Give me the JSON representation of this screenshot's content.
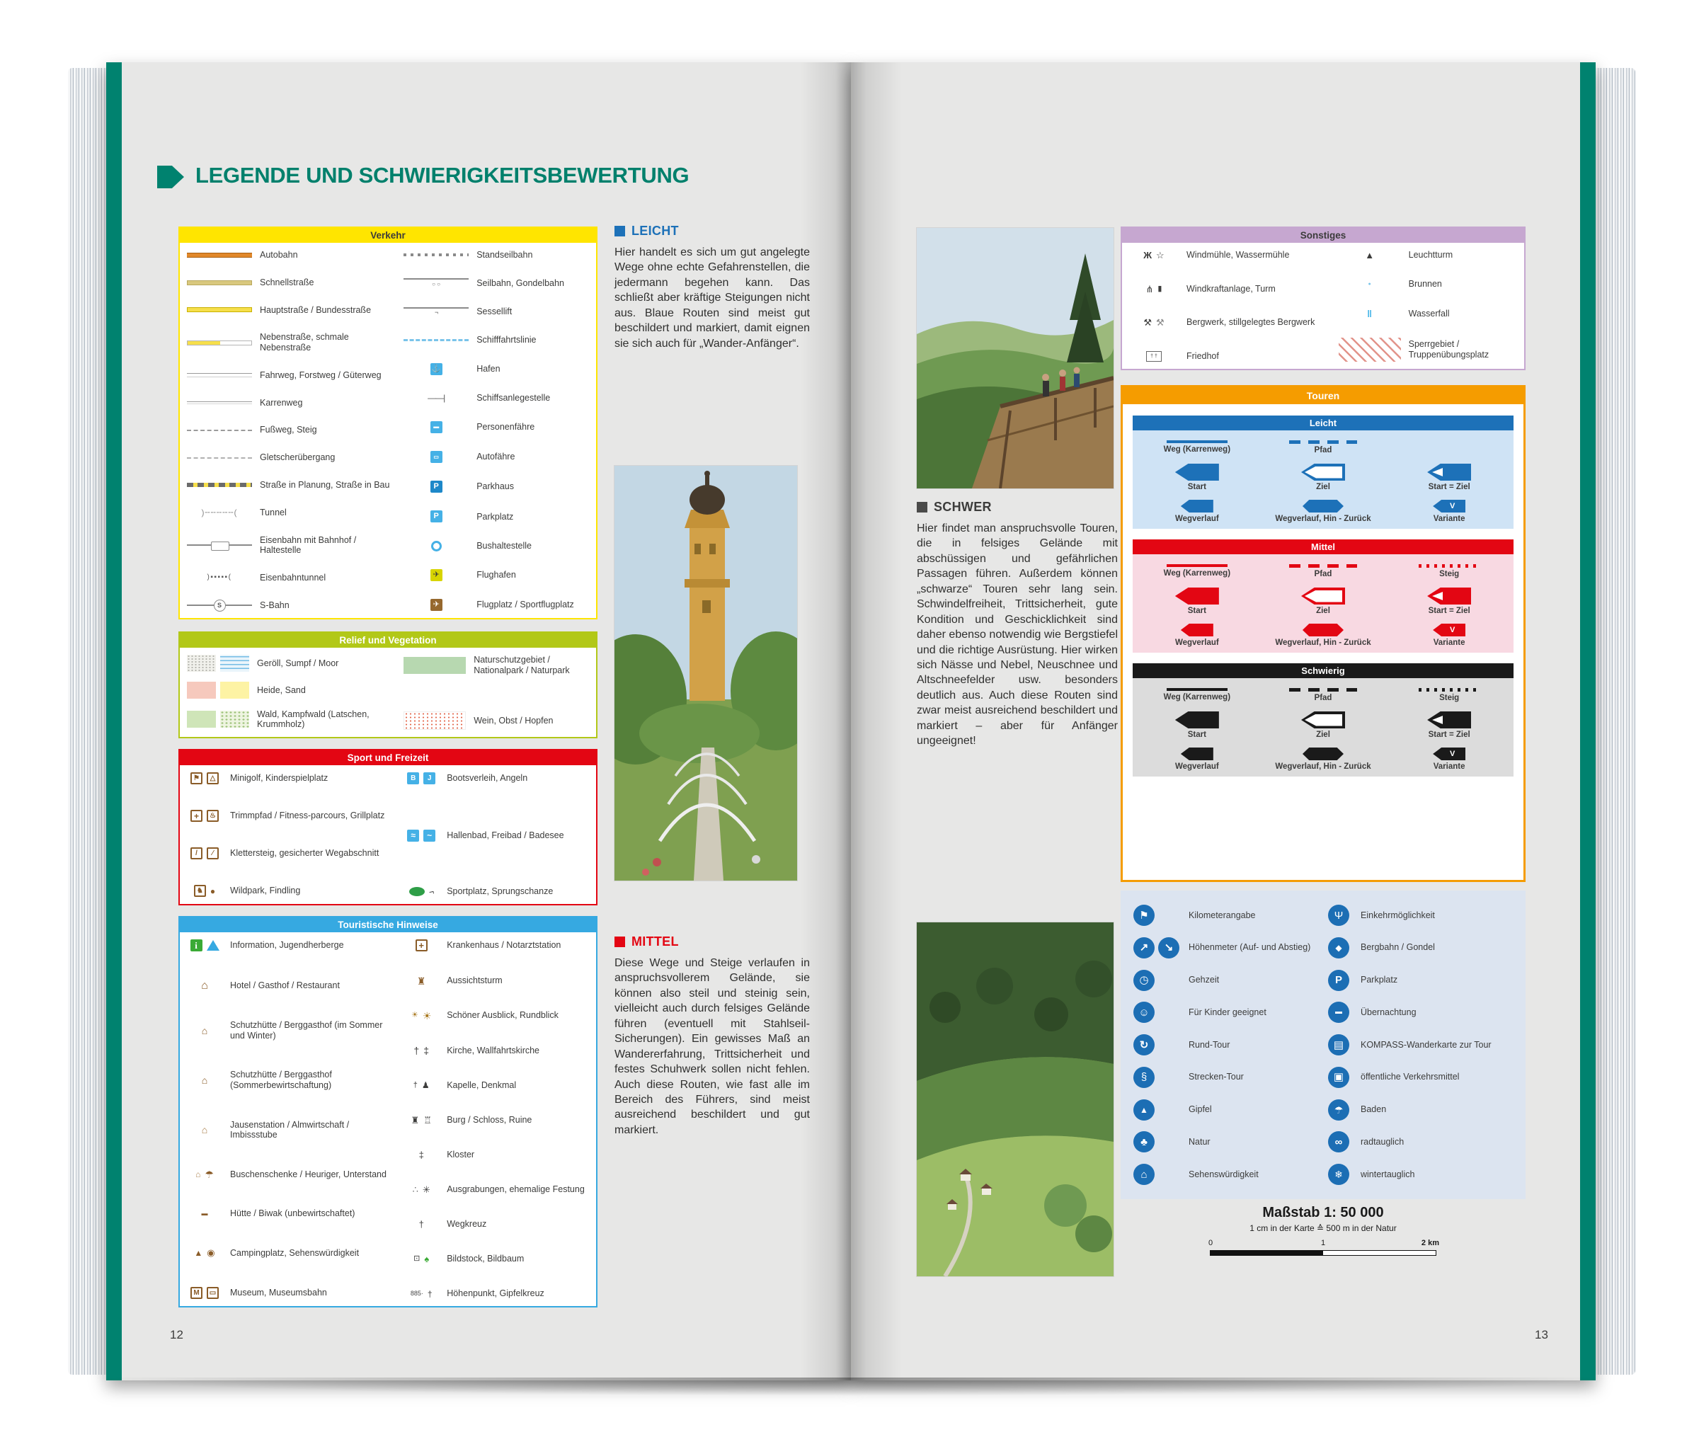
{
  "page": {
    "title": "LEGENDE UND SCHWIERIGKEITSBEWERTUNG",
    "left_page_number": "12",
    "right_page_number": "13"
  },
  "colors": {
    "brand_teal": "#00826f",
    "verkehr_yellow": "#ffe500",
    "relief_green": "#b2c818",
    "sport_red": "#e30613",
    "touristik_blue": "#36a9e1",
    "sonstiges_purple": "#c6a7d0",
    "touren_orange": "#f59c00",
    "leicht_blue": "#1d71b8",
    "mittel_red": "#e30613",
    "schwierig_black": "#1a1a1a",
    "tour_icon_blue": "#1c6eb4"
  },
  "verkehr": {
    "title": "Verkehr",
    "left": [
      {
        "icons": [
          "autobahn"
        ],
        "label": "Autobahn"
      },
      {
        "icons": [
          "schnellstrasse"
        ],
        "label": "Schnellstraße"
      },
      {
        "icons": [
          "hauptstrasse"
        ],
        "label": "Hauptstraße / Bundesstraße"
      },
      {
        "icons": [
          "nebenstrasse"
        ],
        "label": "Nebenstraße, schmale Nebenstraße"
      },
      {
        "icons": [
          "fahrweg"
        ],
        "label": "Fahrweg, Forstweg / Güterweg"
      },
      {
        "icons": [
          "karrenweg"
        ],
        "label": "Karrenweg"
      },
      {
        "icons": [
          "fussweg"
        ],
        "label": "Fußweg, Steig"
      },
      {
        "icons": [
          "gletscher"
        ],
        "label": "Gletscherübergang"
      },
      {
        "icons": [
          "strasse-planung"
        ],
        "label": "Straße in Planung, Straße in Bau"
      },
      {
        "icons": [
          "tunnel"
        ],
        "label": "Tunnel"
      },
      {
        "icons": [
          "eisenbahn"
        ],
        "label": "Eisenbahn mit Bahnhof / Haltestelle"
      },
      {
        "icons": [
          "eisenbahntunnel"
        ],
        "label": "Eisenbahntunnel"
      },
      {
        "icons": [
          "sbahn"
        ],
        "label": "S-Bahn"
      }
    ],
    "right": [
      {
        "icons": [
          "standseilbahn"
        ],
        "label": "Standseilbahn"
      },
      {
        "icons": [
          "seilbahn"
        ],
        "label": "Seilbahn, Gondelbahn"
      },
      {
        "icons": [
          "sessellift"
        ],
        "label": "Sessellift"
      },
      {
        "icons": [
          "schifffahrtslinie"
        ],
        "label": "Schifffahrtslinie"
      },
      {
        "icons": [
          "hafen"
        ],
        "label": "Hafen"
      },
      {
        "icons": [
          "anlegestelle"
        ],
        "label": "Schiffsanlegestelle"
      },
      {
        "icons": [
          "personenfaehre"
        ],
        "label": "Personenfähre"
      },
      {
        "icons": [
          "autofaehre"
        ],
        "label": "Autofähre"
      },
      {
        "icons": [
          "parkhaus"
        ],
        "label": "Parkhaus"
      },
      {
        "icons": [
          "parkplatz"
        ],
        "label": "Parkplatz"
      },
      {
        "icons": [
          "bushaltestelle"
        ],
        "label": "Bushaltestelle"
      },
      {
        "icons": [
          "flughafen"
        ],
        "label": "Flughafen"
      },
      {
        "icons": [
          "flugplatz"
        ],
        "label": "Flugplatz / Sportflugplatz"
      }
    ]
  },
  "relief": {
    "title": "Relief und Vegetation",
    "left": [
      {
        "icons": [
          "geroell",
          "sumpf"
        ],
        "label": "Geröll, Sumpf / Moor"
      },
      {
        "icons": [
          "heide",
          "sand"
        ],
        "label": "Heide, Sand"
      },
      {
        "icons": [
          "wald",
          "kampfwald"
        ],
        "label": "Wald, Kampfwald (Latschen, Krummholz)"
      }
    ],
    "right": [
      {
        "icons": [
          "naturschutz"
        ],
        "label": "Naturschutzgebiet / Nationalpark / Naturpark"
      },
      {
        "icons": [
          "wein"
        ],
        "label": "Wein, Obst / Hopfen"
      }
    ]
  },
  "sport": {
    "title": "Sport und Freizeit",
    "left": [
      {
        "icons": [
          "minigolf",
          "kinderspielplatz"
        ],
        "label": "Minigolf, Kinderspielplatz"
      },
      {
        "icons": [
          "trimmpfad",
          "grillplatz"
        ],
        "label": "Trimmpfad / Fitness-parcours, Grillplatz"
      },
      {
        "icons": [
          "klettersteig",
          "gesicherter-weg"
        ],
        "label": "Klettersteig, gesicherter Wegabschnitt"
      },
      {
        "icons": [
          "wildpark",
          "findling"
        ],
        "label": "Wildpark, Findling"
      }
    ],
    "right": [
      {
        "icons": [
          "bootsverleih",
          "angeln"
        ],
        "label": "Bootsverleih, Angeln"
      },
      {
        "icons": [
          "hallenbad",
          "freibad"
        ],
        "label": "Hallenbad, Freibad / Badesee"
      },
      {
        "icons": [
          "sportplatz",
          "sprungschanze"
        ],
        "label": "Sportplatz, Sprungschanze"
      }
    ]
  },
  "touristik": {
    "title": "Touristische Hinweise",
    "left": [
      {
        "icons": [
          "information",
          "jugendherberge"
        ],
        "label": "Information, Jugendherberge"
      },
      {
        "icons": [
          "hotel"
        ],
        "label": "Hotel / Gasthof / Restaurant"
      },
      {
        "icons": [
          "huette-ws"
        ],
        "label": "Schutzhütte / Berggasthof (im Sommer und Winter)"
      },
      {
        "icons": [
          "huette-s"
        ],
        "label": "Schutzhütte / Berggasthof (Sommerbewirtschaftung)"
      },
      {
        "icons": [
          "jausenstation"
        ],
        "label": "Jausenstation / Almwirtschaft / Imbissstube"
      },
      {
        "icons": [
          "buschenschenke",
          "unterstand"
        ],
        "label": "Buschenschenke / Heuriger, Unterstand"
      },
      {
        "icons": [
          "biwak"
        ],
        "label": "Hütte / Biwak (unbewirtschaftet)"
      },
      {
        "icons": [
          "camping",
          "sehenswuerdigkeit"
        ],
        "label": "Campingplatz, Sehenswürdigkeit"
      },
      {
        "icons": [
          "museum",
          "museumsbahn"
        ],
        "label": "Museum, Museumsbahn"
      }
    ],
    "right": [
      {
        "icons": [
          "krankenhaus"
        ],
        "label": "Krankenhaus / Notarztstation"
      },
      {
        "icons": [
          "aussichtsturm"
        ],
        "label": "Aussichtsturm"
      },
      {
        "icons": [
          "ausblick",
          "rundblick"
        ],
        "label": "Schöner Ausblick, Rundblick"
      },
      {
        "icons": [
          "kirche",
          "wallfahrtskirche"
        ],
        "label": "Kirche, Wallfahrtskirche"
      },
      {
        "icons": [
          "kapelle",
          "denkmal"
        ],
        "label": "Kapelle, Denkmal"
      },
      {
        "icons": [
          "burg",
          "ruine"
        ],
        "label": "Burg / Schloss, Ruine"
      },
      {
        "icons": [
          "kloster"
        ],
        "label": "Kloster"
      },
      {
        "icons": [
          "ausgrabungen",
          "festung"
        ],
        "label": "Ausgrabungen, ehemalige Festung"
      },
      {
        "icons": [
          "wegkreuz"
        ],
        "label": "Wegkreuz"
      },
      {
        "icons": [
          "bildstock",
          "bildbaum"
        ],
        "label": "Bildstock, Bildbaum"
      },
      {
        "icons": [
          "hoehenpunkt",
          "gipfelkreuz"
        ],
        "label": "Höhenpunkt, Gipfelkreuz"
      }
    ]
  },
  "sonstiges": {
    "title": "Sonstiges",
    "left": [
      {
        "icons": [
          "windmuehle",
          "wassermuehle"
        ],
        "label": "Windmühle, Wassermühle"
      },
      {
        "icons": [
          "windkraftanlage",
          "turm"
        ],
        "label": "Windkraftanlage, Turm"
      },
      {
        "icons": [
          "bergwerk",
          "bergwerk-alt"
        ],
        "label": "Bergwerk, stillgelegtes Bergwerk"
      },
      {
        "icons": [
          "friedhof"
        ],
        "label": "Friedhof"
      }
    ],
    "right": [
      {
        "icons": [
          "leuchtturm"
        ],
        "label": "Leuchtturm"
      },
      {
        "icons": [
          "brunnen"
        ],
        "label": "Brunnen"
      },
      {
        "icons": [
          "wasserfall"
        ],
        "label": "Wasserfall"
      },
      {
        "icons": [
          "sperrgebiet"
        ],
        "label": "Sperrgebiet / Truppenübungsplatz"
      }
    ]
  },
  "leicht": {
    "heading": "LEICHT",
    "body": "Hier handelt es sich um gut angelegte Wege ohne echte Gefahrenstellen, die jedermann begehen kann. Das schließt aber kräftige Steigungen nicht aus. Blaue Routen sind meist gut beschildert und markiert, damit eignen sie sich auch für „Wander-Anfänger“."
  },
  "mittel": {
    "heading": "MITTEL",
    "body": "Diese Wege und Steige verlaufen in anspruchsvollerem Gelände, sie können also steil und steinig sein, vielleicht auch durch felsiges Gelände führen (eventuell mit Stahlseil-Sicherungen). Ein gewisses Maß an Wandererfahrung, Trittsicherheit und festes Schuhwerk sollen nicht fehlen. Auch diese Routen, wie fast alle im Bereich des Führers, sind meist ausreichend beschildert und gut markiert."
  },
  "schwer": {
    "heading": "SCHWER",
    "body": "Hier findet man anspruchsvolle Touren, die in felsiges Gelände mit abschüssigen und gefährlichen Passagen führen. Außerdem können „schwarze“ Touren sehr lang sein. Schwindelfreiheit, Trittsicherheit, gute Kondition und Geschicklichkeit sind daher ebenso notwendig wie Bergstiefel und die richtige Ausrüstung. Hier wirken sich Nässe und Nebel, Neuschnee und Altschneefelder usw. besonders deutlich aus. Auch diese Routen sind zwar meist ausreichend beschildert und markiert – aber für Anfänger ungeeignet!"
  },
  "touren": {
    "title": "Touren",
    "sections": [
      {
        "title": "Leicht",
        "color": "#1d71b8",
        "bg": "#cfe3f5",
        "weg": "Weg (Karrenweg)",
        "pfad": "Pfad",
        "steig": "",
        "start": "Start",
        "ziel": "Ziel",
        "startziel": "Start = Ziel",
        "wegverlauf": "Wegverlauf",
        "hinzurueck": "Wegverlauf, Hin - Zurück",
        "variante": "Variante",
        "v": "V"
      },
      {
        "title": "Mittel",
        "color": "#e30613",
        "bg": "#f8d9e2",
        "weg": "Weg (Karrenweg)",
        "pfad": "Pfad",
        "steig": "Steig",
        "start": "Start",
        "ziel": "Ziel",
        "startziel": "Start = Ziel",
        "wegverlauf": "Wegverlauf",
        "hinzurueck": "Wegverlauf, Hin - Zurück",
        "variante": "Variante",
        "v": "V"
      },
      {
        "title": "Schwierig",
        "color": "#1a1a1a",
        "bg": "#dcdcdc",
        "weg": "Weg (Karrenweg)",
        "pfad": "Pfad",
        "steig": "Steig",
        "start": "Start",
        "ziel": "Ziel",
        "startziel": "Start = Ziel",
        "wegverlauf": "Wegverlauf",
        "hinzurueck": "Wegverlauf, Hin - Zurück",
        "variante": "Variante",
        "v": "V"
      }
    ]
  },
  "tour_icons": {
    "left": [
      {
        "icons": [
          "kilometerangabe"
        ],
        "label": "Kilometerangabe"
      },
      {
        "icons": [
          "hoehenmeter-aufstieg",
          "hoehenmeter-abstieg"
        ],
        "label": "Höhenmeter (Auf- und Abstieg)"
      },
      {
        "icons": [
          "gehzeit"
        ],
        "label": "Gehzeit"
      },
      {
        "icons": [
          "kinder"
        ],
        "label": "Für Kinder geeignet"
      },
      {
        "icons": [
          "rundtour"
        ],
        "label": "Rund-Tour"
      },
      {
        "icons": [
          "streckentour"
        ],
        "label": "Strecken-Tour"
      },
      {
        "icons": [
          "gipfel"
        ],
        "label": "Gipfel"
      },
      {
        "icons": [
          "natur"
        ],
        "label": "Natur"
      },
      {
        "icons": [
          "sehenswert"
        ],
        "label": "Sehenswürdigkeit"
      }
    ],
    "right": [
      {
        "icons": [
          "einkehr"
        ],
        "label": "Einkehrmöglichkeit"
      },
      {
        "icons": [
          "bergbahn"
        ],
        "label": "Bergbahn / Gondel"
      },
      {
        "icons": [
          "parken"
        ],
        "label": "Parkplatz"
      },
      {
        "icons": [
          "uebernachtung"
        ],
        "label": "Übernachtung"
      },
      {
        "icons": [
          "kompasskarte"
        ],
        "label": "KOMPASS-Wanderkarte zur Tour"
      },
      {
        "icons": [
          "oepnv"
        ],
        "label": "öffentliche Verkehrsmittel"
      },
      {
        "icons": [
          "baden"
        ],
        "label": "Baden"
      },
      {
        "icons": [
          "rad"
        ],
        "label": "radtauglich"
      },
      {
        "icons": [
          "winter"
        ],
        "label": "wintertauglich"
      }
    ]
  },
  "massstab": {
    "title": "Maßstab 1: 50 000",
    "subtitle": "1 cm in der Karte ≙ 500 m in der Natur",
    "tick0": "0",
    "tick1": "1",
    "tick2": "2 km"
  }
}
